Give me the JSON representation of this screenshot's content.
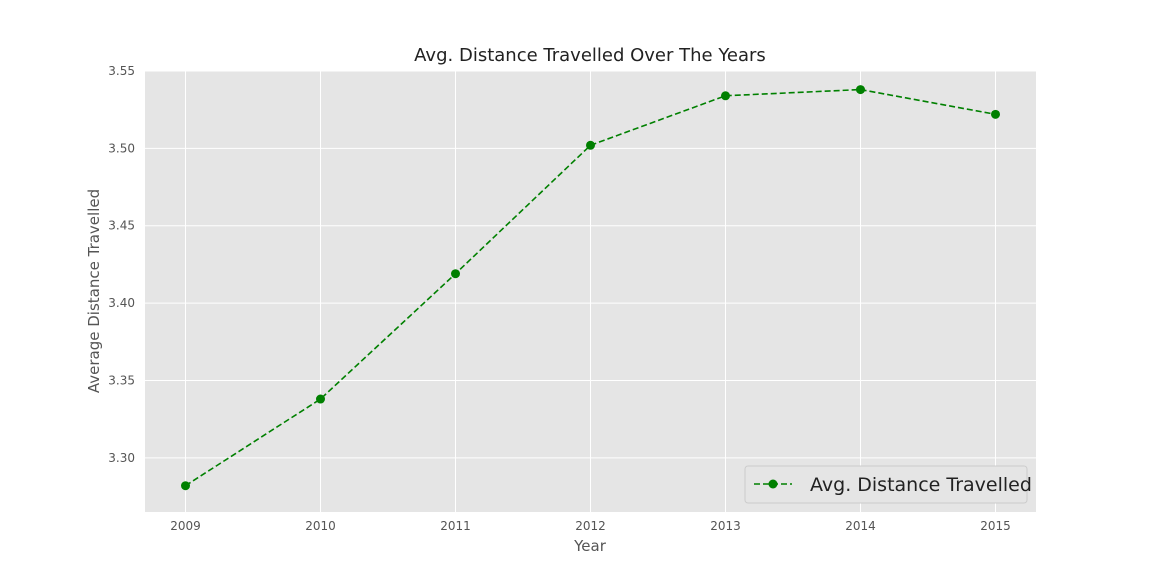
{
  "chart_data": {
    "type": "line",
    "title": "Avg. Distance Travelled Over The Years",
    "xlabel": "Year",
    "ylabel": "Average Distance Travelled",
    "x": [
      2009,
      2010,
      2011,
      2012,
      2013,
      2014,
      2015
    ],
    "series": [
      {
        "name": "Avg. Distance Travelled",
        "values": [
          3.282,
          3.338,
          3.419,
          3.502,
          3.534,
          3.538,
          3.522
        ],
        "color": "#008000",
        "line_style": "dashed",
        "marker": "circle"
      }
    ],
    "xlim": [
      2008.7,
      2015.3
    ],
    "ylim": [
      3.265,
      3.55
    ],
    "x_ticks": [
      "2009",
      "2010",
      "2011",
      "2012",
      "2013",
      "2014",
      "2015"
    ],
    "y_ticks": [
      "3.30",
      "3.35",
      "3.40",
      "3.45",
      "3.50",
      "3.55"
    ],
    "grid": true,
    "legend_position": "lower-right",
    "plot_background": "#e5e5e5",
    "grid_color": "#ffffff"
  }
}
